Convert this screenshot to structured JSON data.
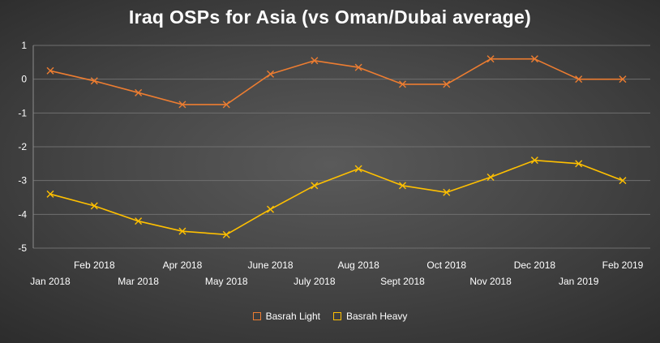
{
  "chart_data": {
    "type": "line",
    "title": "Iraq OSPs for Asia (vs Oman/Dubai average)",
    "xlabel": "",
    "ylabel": "",
    "ylim": [
      -5,
      1
    ],
    "yticks": [
      "1",
      "0",
      "-1",
      "-2",
      "-3",
      "-4",
      "-5"
    ],
    "grid": true,
    "legend_position": "bottom",
    "categories": [
      "Jan 2018",
      "Feb 2018",
      "Mar 2018",
      "Apr 2018",
      "May 2018",
      "June 2018",
      "July 2018",
      "Aug 2018",
      "Sept 2018",
      "Oct 2018",
      "Nov 2018",
      "Dec 2018",
      "Jan 2019",
      "Feb 2019"
    ],
    "series": [
      {
        "name": "Basrah Light",
        "color": "#ED7D31",
        "marker": "x",
        "values": [
          0.25,
          -0.05,
          -0.4,
          -0.75,
          -0.75,
          0.15,
          0.55,
          0.35,
          -0.15,
          -0.15,
          0.6,
          0.6,
          0.0,
          0.0
        ]
      },
      {
        "name": "Basrah Heavy",
        "color": "#FFC000",
        "marker": "x",
        "values": [
          -3.4,
          -3.75,
          -4.2,
          -4.5,
          -4.6,
          -3.85,
          -3.15,
          -2.65,
          -3.15,
          -3.35,
          -2.9,
          -2.4,
          -2.5,
          -3.0
        ]
      }
    ]
  }
}
